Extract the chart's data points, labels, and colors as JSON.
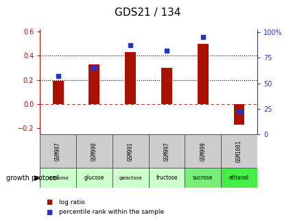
{
  "title": "GDS21 / 134",
  "samples": [
    "GSM907",
    "GSM990",
    "GSM991",
    "GSM997",
    "GSM999",
    "GSM1001"
  ],
  "protocols": [
    "raffinose",
    "glucose",
    "galactose",
    "fructose",
    "sucrose",
    "ethanol"
  ],
  "log_ratios": [
    0.19,
    0.33,
    0.43,
    0.3,
    0.5,
    -0.17
  ],
  "percentile_ranks": [
    57,
    65,
    87,
    82,
    95,
    22
  ],
  "bar_color": "#aa1100",
  "dot_color": "#2233cc",
  "bg_color": "#ffffff",
  "plot_bg": "#ffffff",
  "ylim_left": [
    -0.25,
    0.62
  ],
  "ylim_right": [
    0,
    103
  ],
  "left_ticks": [
    -0.2,
    0.0,
    0.2,
    0.4,
    0.6
  ],
  "right_ticks": [
    0,
    25,
    50,
    75,
    100
  ],
  "hline_y": [
    0.2,
    0.4
  ],
  "zero_line_y": 0.0,
  "protocol_colors": [
    "#ccffcc",
    "#ccffcc",
    "#ccffcc",
    "#ccffcc",
    "#77ee77",
    "#44ee44"
  ],
  "title_fontsize": 11,
  "tick_fontsize": 7,
  "bar_width": 0.3
}
